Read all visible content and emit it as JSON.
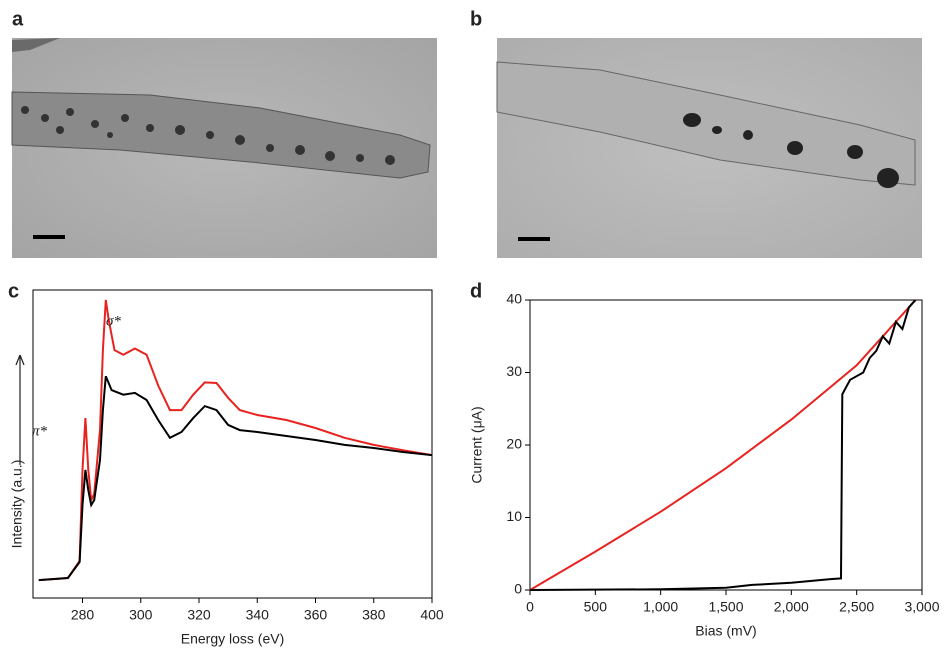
{
  "panels": [
    "a",
    "b",
    "c",
    "d"
  ],
  "chart_data": [
    {
      "type": "line",
      "xlabel": "Energy loss (eV)",
      "ylabel": "Intensity (a.u.)",
      "annotations": [
        "π*",
        "σ*"
      ],
      "xlim": [
        263,
        400
      ],
      "ylim": [
        0,
        100
      ],
      "xticks": [
        280,
        300,
        320,
        340,
        360,
        380,
        400
      ],
      "series": [
        {
          "color": "#e8231f",
          "x": [
            265,
            275,
            279,
            280,
            281,
            282,
            283,
            284,
            286,
            287,
            288,
            289,
            291,
            294,
            298,
            302,
            306,
            310,
            314,
            318,
            322,
            326,
            330,
            334,
            340,
            350,
            360,
            370,
            380,
            390,
            400
          ],
          "values": [
            5.8,
            6.5,
            12,
            41.6,
            58.4,
            41.6,
            31.8,
            33.8,
            54.5,
            80.5,
            96.8,
            90.3,
            80.5,
            79,
            81,
            79,
            69,
            61,
            61,
            66,
            70,
            69.8,
            65,
            61,
            59.4,
            57.8,
            55.2,
            52,
            49.7,
            48,
            46.4
          ]
        },
        {
          "color": "#000000",
          "x": [
            265,
            275,
            279,
            280,
            281,
            282,
            283,
            284,
            286,
            287,
            288,
            290,
            294,
            298,
            302,
            306,
            310,
            314,
            318,
            322,
            326,
            330,
            334,
            340,
            350,
            360,
            370,
            380,
            390,
            400
          ],
          "values": [
            5.8,
            6.5,
            11.7,
            30.2,
            41.6,
            35,
            30.2,
            31.8,
            44.8,
            61,
            72,
            67.5,
            66,
            66.6,
            64.3,
            57.8,
            52,
            53.9,
            58.4,
            62.3,
            61,
            56.2,
            54.5,
            53.9,
            52.6,
            51.3,
            49.7,
            48.7,
            47.4,
            46.4
          ]
        }
      ]
    },
    {
      "type": "line",
      "xlabel": "Bias (mV)",
      "ylabel": "Current (μA)",
      "xlim": [
        0,
        3000
      ],
      "ylim": [
        0,
        40
      ],
      "xticks": [
        0,
        500,
        {
          "value": 1000,
          "label": "1,000"
        },
        {
          "value": 1500,
          "label": "1,500"
        },
        {
          "value": 2000,
          "label": "2,000"
        },
        {
          "value": 2500,
          "label": "2,500"
        },
        {
          "value": 3000,
          "label": "3,000"
        }
      ],
      "yticks": [
        0,
        10,
        20,
        30,
        40
      ],
      "series": [
        {
          "color": "#e8231f",
          "x": [
            0,
            500,
            1000,
            1500,
            2000,
            2500,
            2950
          ],
          "values": [
            0,
            5.3,
            10.8,
            16.8,
            23.5,
            31,
            40
          ]
        },
        {
          "color": "#000000",
          "x": [
            0,
            1000,
            1500,
            1700,
            2000,
            2300,
            2380,
            2390,
            2450,
            2550,
            2600,
            2650,
            2700,
            2750,
            2800,
            2850,
            2900,
            2950
          ],
          "values": [
            0,
            0.1,
            0.3,
            0.7,
            1,
            1.5,
            1.6,
            27,
            29,
            30,
            32,
            33,
            35,
            34,
            37,
            36,
            39,
            40
          ]
        }
      ]
    }
  ]
}
